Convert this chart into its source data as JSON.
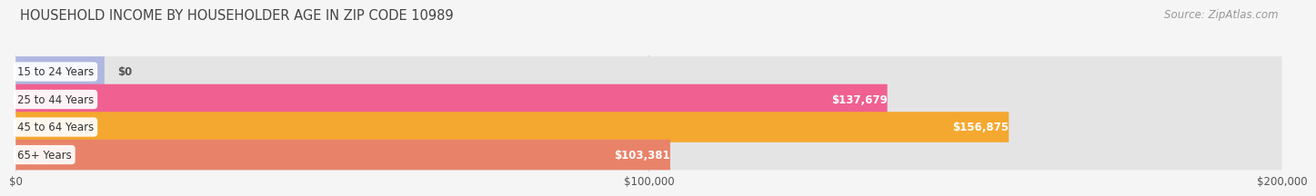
{
  "title": "HOUSEHOLD INCOME BY HOUSEHOLDER AGE IN ZIP CODE 10989",
  "source": "Source: ZipAtlas.com",
  "categories": [
    "15 to 24 Years",
    "25 to 44 Years",
    "45 to 64 Years",
    "65+ Years"
  ],
  "values": [
    0,
    137679,
    156875,
    103381
  ],
  "bar_colors": [
    "#b0b8e0",
    "#f06090",
    "#f5a830",
    "#e8836a"
  ],
  "value_labels": [
    "$0",
    "$137,679",
    "$156,875",
    "$103,381"
  ],
  "xlim": [
    0,
    200000
  ],
  "xtick_labels": [
    "$0",
    "$100,000",
    "$200,000"
  ],
  "background_color": "#f5f5f5",
  "bar_bg_color": "#e4e4e4",
  "title_fontsize": 10.5,
  "source_fontsize": 8.5,
  "bar_height": 0.55
}
